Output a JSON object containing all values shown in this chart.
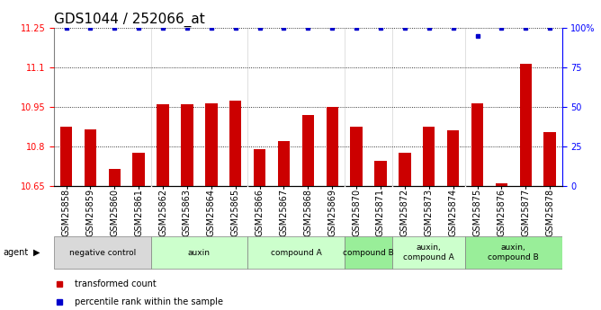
{
  "title": "GDS1044 / 252066_at",
  "samples": [
    "GSM25858",
    "GSM25859",
    "GSM25860",
    "GSM25861",
    "GSM25862",
    "GSM25863",
    "GSM25864",
    "GSM25865",
    "GSM25866",
    "GSM25867",
    "GSM25868",
    "GSM25869",
    "GSM25870",
    "GSM25871",
    "GSM25872",
    "GSM25873",
    "GSM25874",
    "GSM25875",
    "GSM25876",
    "GSM25877",
    "GSM25878"
  ],
  "bar_values": [
    10.875,
    10.865,
    10.715,
    10.775,
    10.96,
    10.96,
    10.965,
    10.975,
    10.79,
    10.82,
    10.92,
    10.95,
    10.875,
    10.745,
    10.775,
    10.875,
    10.86,
    10.965,
    10.66,
    11.115,
    10.855
  ],
  "percentile_values": [
    100,
    100,
    100,
    100,
    100,
    100,
    100,
    100,
    100,
    100,
    100,
    100,
    100,
    100,
    100,
    100,
    100,
    95,
    100,
    100,
    100
  ],
  "bar_color": "#cc0000",
  "dot_color": "#0000cc",
  "ylim_left": [
    10.65,
    11.25
  ],
  "ylim_right": [
    0,
    100
  ],
  "yticks_left": [
    10.65,
    10.8,
    10.95,
    11.1,
    11.25
  ],
  "ytick_labels_left": [
    "10.65",
    "10.8",
    "10.95",
    "11.1",
    "11.25"
  ],
  "yticks_right": [
    0,
    25,
    50,
    75,
    100
  ],
  "ytick_labels_right": [
    "0",
    "25",
    "50",
    "75",
    "100%"
  ],
  "agent_groups": [
    {
      "label": "negative control",
      "start": 0,
      "end": 3,
      "color": "#d9d9d9"
    },
    {
      "label": "auxin",
      "start": 4,
      "end": 7,
      "color": "#ccffcc"
    },
    {
      "label": "compound A",
      "start": 8,
      "end": 11,
      "color": "#ccffcc"
    },
    {
      "label": "compound B",
      "start": 12,
      "end": 13,
      "color": "#99ee99"
    },
    {
      "label": "auxin,\ncompound A",
      "start": 14,
      "end": 16,
      "color": "#ccffcc"
    },
    {
      "label": "auxin,\ncompound B",
      "start": 17,
      "end": 20,
      "color": "#99ee99"
    }
  ],
  "legend_entries": [
    {
      "label": "transformed count",
      "color": "#cc0000"
    },
    {
      "label": "percentile rank within the sample",
      "color": "#0000cc"
    }
  ],
  "background_color": "#ffffff",
  "title_fontsize": 11,
  "tick_fontsize": 7,
  "label_fontsize": 7
}
